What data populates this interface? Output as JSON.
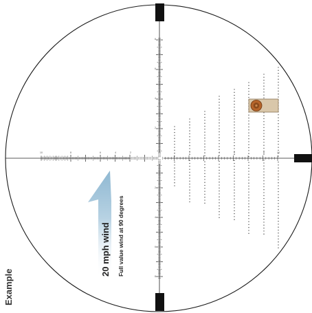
{
  "corner_label": "Example",
  "wind": {
    "speed_label": "20 mph wind",
    "note": "Full value wind at 90 degrees"
  },
  "reticle": {
    "horizontal_tick_labels": [
      "10",
      "8",
      "6",
      "4",
      "2",
      "2",
      "4",
      "6",
      "8",
      "10"
    ],
    "vertical_tick_labels": [
      "8",
      "6",
      "4",
      "2",
      "2",
      "4",
      "6",
      "8"
    ]
  },
  "colors": {
    "reticle": "#222222",
    "circle": "#1a1a1a",
    "arrow": "#9fc3d9",
    "bullet": "#b5642a",
    "target": "#d9c7aa"
  },
  "icons": {
    "bullet": "bullet-hole-icon"
  }
}
